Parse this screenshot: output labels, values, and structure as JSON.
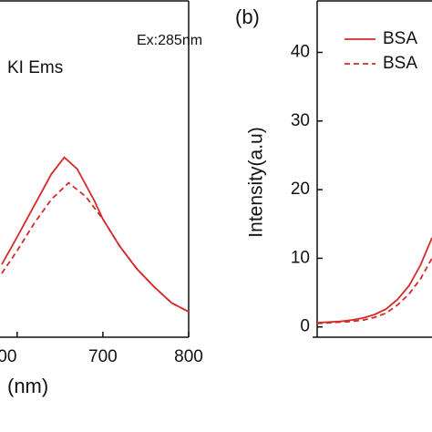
{
  "chart_data": [
    {
      "type": "line",
      "annotations": [
        "KI Ems",
        "Ex:285nm"
      ],
      "x_label": "(nm)",
      "xlim": [
        580,
        800
      ],
      "xticks": [
        {
          "value": 600,
          "label": "00"
        },
        700,
        800
      ],
      "ylim": [
        -1.5,
        47.5
      ],
      "series": [
        {
          "style": "solid",
          "color": "#d42a2a",
          "x": [
            582,
            600,
            620,
            640,
            655,
            670,
            690,
            700,
            720,
            740,
            760,
            780,
            800
          ],
          "values": [
            9.1,
            13.1,
            17.7,
            22.3,
            24.7,
            23,
            18.4,
            15.7,
            11.7,
            8.4,
            5.8,
            3.5,
            2.2
          ]
        },
        {
          "style": "dashed",
          "color": "#d42a2a",
          "x": [
            582,
            600,
            620,
            640,
            660,
            680,
            700,
            720,
            740,
            760,
            780,
            800
          ],
          "values": [
            7.8,
            11.1,
            15.1,
            18.6,
            21,
            19,
            15.7,
            11.7,
            8.4,
            5.8,
            3.5,
            2.2
          ]
        }
      ]
    },
    {
      "type": "line",
      "panel_label": "(b)",
      "y_label": "Intensity(a.u)",
      "xlim": [
        0,
        10
      ],
      "ylim": [
        -1.5,
        47.5
      ],
      "yticks": [
        0,
        10,
        20,
        30,
        40
      ],
      "series": [
        {
          "name": "BSA",
          "style": "solid",
          "color": "#d42a2a",
          "x": [
            0,
            1,
            2,
            3,
            4,
            5,
            6,
            7,
            8,
            9,
            10
          ],
          "values": [
            0.6,
            0.7,
            0.8,
            1.0,
            1.3,
            1.8,
            2.6,
            4,
            6,
            9,
            13
          ]
        },
        {
          "name": "BSA",
          "style": "dashed",
          "color": "#d42a2a",
          "x": [
            0,
            1,
            2,
            3,
            4,
            5,
            6,
            7,
            8,
            9,
            10
          ],
          "values": [
            0.5,
            0.6,
            0.7,
            0.8,
            1.0,
            1.4,
            2.0,
            3.2,
            4.8,
            7,
            10
          ]
        }
      ]
    }
  ]
}
